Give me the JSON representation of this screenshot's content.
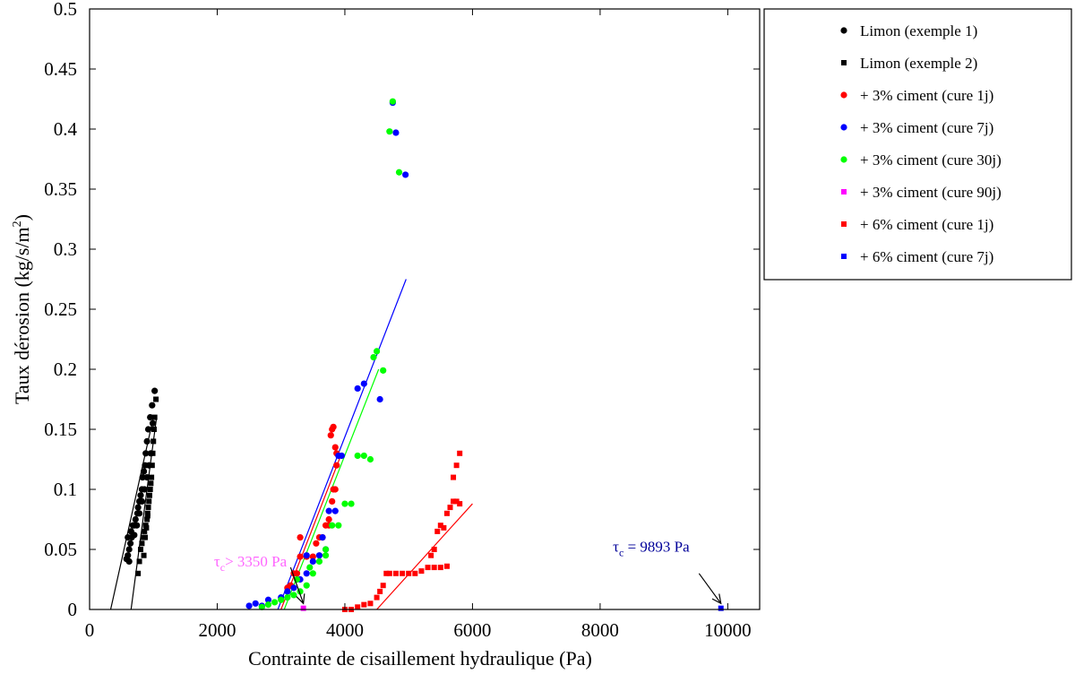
{
  "chart_data": {
    "type": "scatter",
    "title": "",
    "xlabel": "Contrainte de cisaillement hydraulique (Pa)",
    "ylabel_main": "Taux dérosion (kg/s/m",
    "ylabel_sup": "2",
    "ylabel_end": ")",
    "xlim": [
      0,
      10500
    ],
    "ylim": [
      0,
      0.5
    ],
    "xticks": [
      0,
      2000,
      4000,
      6000,
      8000,
      10000
    ],
    "xtick_labels": [
      "0",
      "2000",
      "4000",
      "6000",
      "8000",
      "10000"
    ],
    "yticks": [
      0,
      0.05,
      0.1,
      0.15,
      0.2,
      0.25,
      0.3,
      0.35,
      0.4,
      0.45,
      0.5
    ],
    "ytick_labels": [
      "0",
      "0.05",
      "0.1",
      "0.15",
      "0.2",
      "0.25",
      "0.3",
      "0.35",
      "0.4",
      "0.45",
      "0.5"
    ],
    "grid": false,
    "legend_position": "outside-top-right",
    "series": [
      {
        "name": "Limon (exemple 1)",
        "marker": "circle",
        "color": "#000000",
        "points": [
          [
            580,
            0.042
          ],
          [
            600,
            0.045
          ],
          [
            620,
            0.05
          ],
          [
            640,
            0.055
          ],
          [
            600,
            0.06
          ],
          [
            650,
            0.065
          ],
          [
            680,
            0.07
          ],
          [
            700,
            0.062
          ],
          [
            720,
            0.075
          ],
          [
            750,
            0.08
          ],
          [
            760,
            0.085
          ],
          [
            780,
            0.09
          ],
          [
            800,
            0.095
          ],
          [
            820,
            0.1
          ],
          [
            830,
            0.11
          ],
          [
            850,
            0.115
          ],
          [
            870,
            0.12
          ],
          [
            880,
            0.13
          ],
          [
            900,
            0.14
          ],
          [
            920,
            0.15
          ],
          [
            950,
            0.16
          ],
          [
            980,
            0.17
          ],
          [
            1020,
            0.182
          ],
          [
            620,
            0.04
          ],
          [
            660,
            0.06
          ],
          [
            700,
            0.07
          ],
          [
            740,
            0.07
          ],
          [
            780,
            0.08
          ],
          [
            820,
            0.09
          ],
          [
            860,
            0.1
          ],
          [
            900,
            0.11
          ],
          [
            930,
            0.12
          ],
          [
            960,
            0.13
          ],
          [
            990,
            0.155
          ]
        ]
      },
      {
        "name": "Limon (exemple 2)",
        "marker": "square",
        "color": "#000000",
        "points": [
          [
            760,
            0.03
          ],
          [
            780,
            0.04
          ],
          [
            800,
            0.05
          ],
          [
            820,
            0.055
          ],
          [
            840,
            0.06
          ],
          [
            860,
            0.065
          ],
          [
            880,
            0.07
          ],
          [
            900,
            0.075
          ],
          [
            910,
            0.08
          ],
          [
            920,
            0.085
          ],
          [
            930,
            0.09
          ],
          [
            940,
            0.095
          ],
          [
            950,
            0.1
          ],
          [
            960,
            0.105
          ],
          [
            970,
            0.11
          ],
          [
            980,
            0.12
          ],
          [
            990,
            0.13
          ],
          [
            1000,
            0.14
          ],
          [
            1010,
            0.15
          ],
          [
            1020,
            0.16
          ],
          [
            1040,
            0.175
          ],
          [
            850,
            0.045
          ],
          [
            870,
            0.06
          ],
          [
            890,
            0.068
          ],
          [
            910,
            0.078
          ]
        ]
      },
      {
        "name": "+ 3% ciment (cure 1j)",
        "marker": "circle",
        "color": "#ff0000",
        "points": [
          [
            3100,
            0.018
          ],
          [
            3150,
            0.02
          ],
          [
            3200,
            0.03
          ],
          [
            3250,
            0.03
          ],
          [
            3300,
            0.044
          ],
          [
            3400,
            0.044
          ],
          [
            3500,
            0.044
          ],
          [
            3550,
            0.055
          ],
          [
            3600,
            0.06
          ],
          [
            3650,
            0.06
          ],
          [
            3700,
            0.07
          ],
          [
            3750,
            0.075
          ],
          [
            3800,
            0.09
          ],
          [
            3820,
            0.1
          ],
          [
            3850,
            0.1
          ],
          [
            3780,
            0.145
          ],
          [
            3800,
            0.15
          ],
          [
            3820,
            0.152
          ],
          [
            3850,
            0.135
          ],
          [
            3870,
            0.13
          ],
          [
            3870,
            0.12
          ],
          [
            3300,
            0.06
          ],
          [
            3750,
            0.07
          ]
        ]
      },
      {
        "name": "+ 3% ciment (cure 7j)",
        "marker": "circle",
        "color": "#0000ff",
        "points": [
          [
            2500,
            0.003
          ],
          [
            2600,
            0.005
          ],
          [
            2700,
            0.003
          ],
          [
            2800,
            0.008
          ],
          [
            3000,
            0.01
          ],
          [
            3100,
            0.015
          ],
          [
            3200,
            0.018
          ],
          [
            3300,
            0.025
          ],
          [
            3400,
            0.03
          ],
          [
            3500,
            0.04
          ],
          [
            3600,
            0.045
          ],
          [
            3700,
            0.05
          ],
          [
            3750,
            0.082
          ],
          [
            3850,
            0.082
          ],
          [
            3900,
            0.128
          ],
          [
            3950,
            0.128
          ],
          [
            4200,
            0.184
          ],
          [
            4300,
            0.188
          ],
          [
            4550,
            0.175
          ],
          [
            4800,
            0.397
          ],
          [
            4950,
            0.362
          ],
          [
            4750,
            0.422
          ],
          [
            3400,
            0.045
          ],
          [
            3650,
            0.06
          ]
        ]
      },
      {
        "name": "+ 3% ciment (cure 30j)",
        "marker": "circle",
        "color": "#00ff00",
        "points": [
          [
            2700,
            0.002
          ],
          [
            2800,
            0.004
          ],
          [
            2900,
            0.006
          ],
          [
            3000,
            0.008
          ],
          [
            3100,
            0.01
          ],
          [
            3200,
            0.012
          ],
          [
            3300,
            0.015
          ],
          [
            3400,
            0.02
          ],
          [
            3500,
            0.03
          ],
          [
            3600,
            0.04
          ],
          [
            3700,
            0.05
          ],
          [
            3800,
            0.07
          ],
          [
            3900,
            0.07
          ],
          [
            4000,
            0.088
          ],
          [
            4100,
            0.088
          ],
          [
            4200,
            0.128
          ],
          [
            4300,
            0.128
          ],
          [
            4400,
            0.125
          ],
          [
            4450,
            0.21
          ],
          [
            4500,
            0.215
          ],
          [
            4600,
            0.199
          ],
          [
            4700,
            0.398
          ],
          [
            4750,
            0.423
          ],
          [
            4850,
            0.364
          ],
          [
            3250,
            0.025
          ],
          [
            3450,
            0.035
          ],
          [
            3700,
            0.045
          ]
        ]
      },
      {
        "name": "+ 3% ciment (cure 90j)",
        "marker": "square",
        "color": "#ff00ff",
        "points": [
          [
            3350,
            0.001
          ]
        ]
      },
      {
        "name": "+ 6% ciment (cure 1j)",
        "marker": "square",
        "color": "#ff0000",
        "points": [
          [
            4000,
            0.0
          ],
          [
            4100,
            0.0
          ],
          [
            4200,
            0.002
          ],
          [
            4300,
            0.004
          ],
          [
            4400,
            0.005
          ],
          [
            4500,
            0.01
          ],
          [
            4550,
            0.015
          ],
          [
            4600,
            0.02
          ],
          [
            4650,
            0.03
          ],
          [
            4700,
            0.03
          ],
          [
            4800,
            0.03
          ],
          [
            4900,
            0.03
          ],
          [
            5000,
            0.03
          ],
          [
            5100,
            0.03
          ],
          [
            5200,
            0.032
          ],
          [
            5300,
            0.035
          ],
          [
            5400,
            0.035
          ],
          [
            5450,
            0.065
          ],
          [
            5500,
            0.07
          ],
          [
            5550,
            0.068
          ],
          [
            5600,
            0.08
          ],
          [
            5650,
            0.085
          ],
          [
            5700,
            0.09
          ],
          [
            5750,
            0.09
          ],
          [
            5800,
            0.088
          ],
          [
            5700,
            0.11
          ],
          [
            5750,
            0.12
          ],
          [
            5800,
            0.13
          ],
          [
            5350,
            0.045
          ],
          [
            5400,
            0.05
          ],
          [
            5500,
            0.035
          ],
          [
            5600,
            0.036
          ]
        ]
      },
      {
        "name": "+ 6% ciment (cure 7j)",
        "marker": "square",
        "color": "#0000ff",
        "points": [
          [
            9893,
            0.001
          ]
        ]
      }
    ],
    "fit_lines": [
      {
        "color": "#000000",
        "from": [
          330,
          0.0
        ],
        "to": [
          1000,
          0.16
        ]
      },
      {
        "color": "#000000",
        "from": [
          650,
          0.0
        ],
        "to": [
          1050,
          0.16
        ]
      },
      {
        "color": "#0000ff",
        "from": [
          2950,
          0.0
        ],
        "to": [
          4960,
          0.275
        ]
      },
      {
        "color": "#00ff00",
        "from": [
          3050,
          0.0
        ],
        "to": [
          4530,
          0.2
        ]
      },
      {
        "color": "#ff0000",
        "from": [
          3000,
          0.0
        ],
        "to": [
          3950,
          0.13
        ]
      },
      {
        "color": "#ff0000",
        "from": [
          4500,
          0.0
        ],
        "to": [
          6000,
          0.088
        ]
      }
    ],
    "annotations": [
      {
        "text_main": "τ",
        "text_sub": "c",
        "text_rest": "> 3350 Pa",
        "color": "#ff66ff",
        "target": [
          3350,
          0.005
        ],
        "arrow_from": [
          3150,
          0.035
        ],
        "text_pos": [
          1950,
          0.036
        ]
      },
      {
        "text_main": "τ",
        "text_sub": "c",
        "text_rest": " = 9893 Pa",
        "color": "#000099",
        "target": [
          9893,
          0.005
        ],
        "arrow_from": [
          9550,
          0.03
        ],
        "text_pos": [
          8200,
          0.048
        ]
      }
    ]
  }
}
